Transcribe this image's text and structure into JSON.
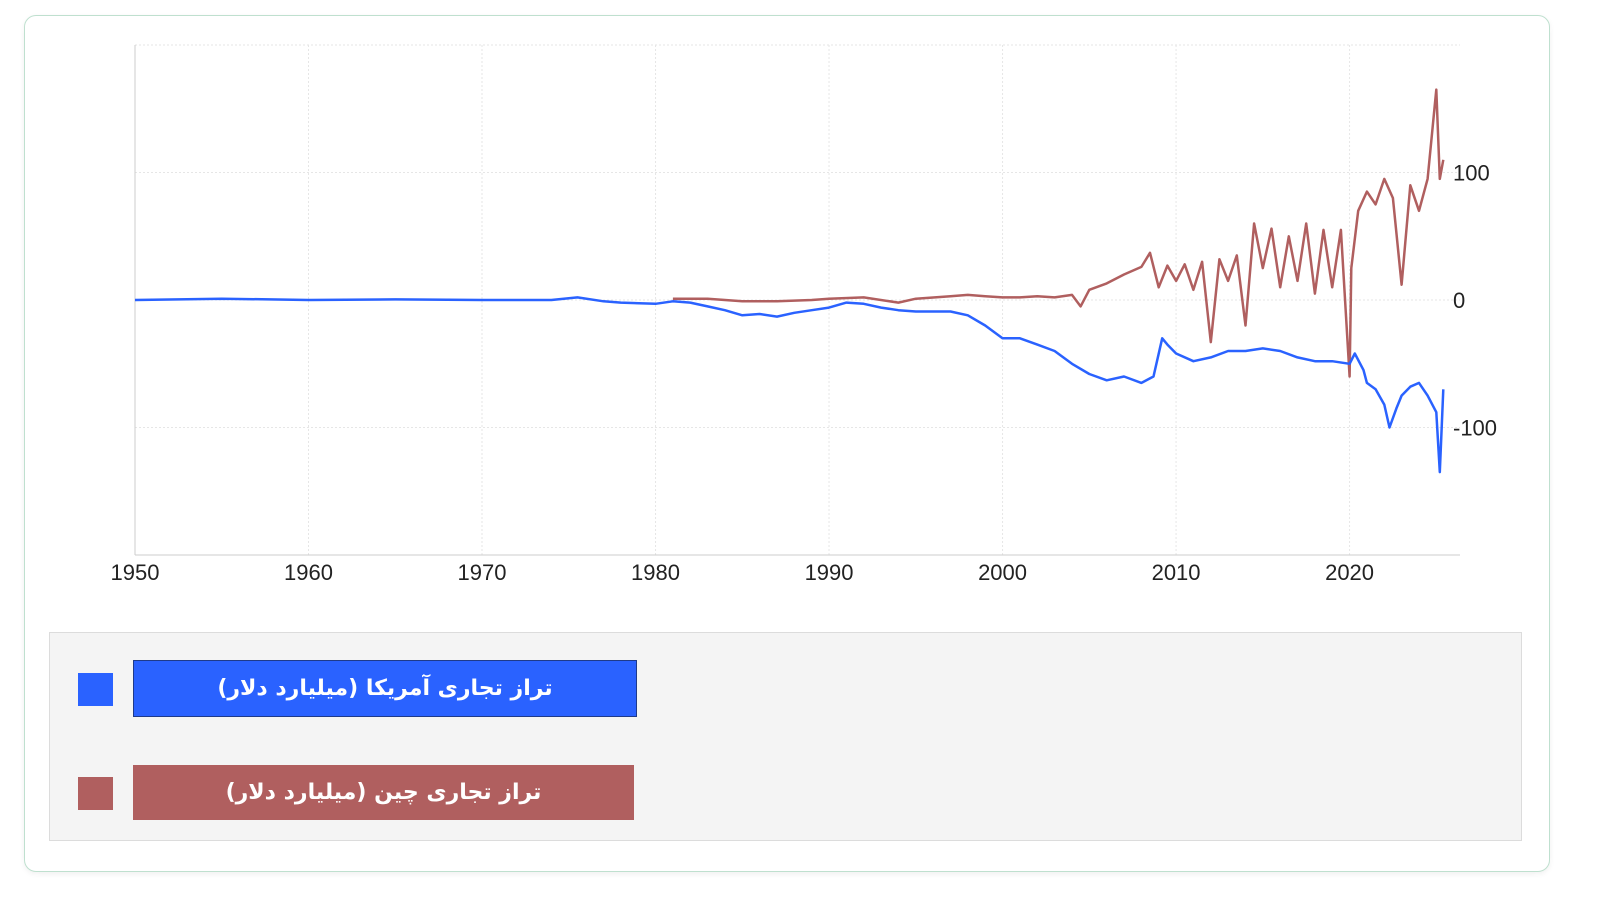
{
  "colors": {
    "us": "#2a62ff",
    "china": "#b05f5f",
    "grid": "#e6e6e6",
    "axis": "#cccccc"
  },
  "legend": [
    {
      "label": "تراز تجاری آمریکا (میلیارد دلار)",
      "color": "#2a62ff"
    },
    {
      "label": "تراز تجاری چین (میلیارد دلار)",
      "color": "#b05f5f"
    }
  ],
  "chart_data": {
    "type": "line",
    "xlim": [
      1950,
      2025.5
    ],
    "ylim": [
      -200,
      200
    ],
    "x_ticks": [
      1950,
      1960,
      1970,
      1980,
      1990,
      2000,
      2010,
      2020
    ],
    "x_tick_labels": [
      "1950",
      "1960",
      "1970",
      "1980",
      "1990",
      "2000",
      "2010",
      "2020"
    ],
    "y_ticks": [
      100,
      0,
      -100
    ],
    "y_tick_labels": [
      "100",
      "0",
      "-100"
    ],
    "y_axis_side": "right",
    "grid": true,
    "legend_position": "bottom",
    "series": [
      {
        "name": "تراز تجاری آمریکا (میلیارد دلار)",
        "x": [
          1950,
          1955,
          1960,
          1965,
          1970,
          1974,
          1975.5,
          1977,
          1978,
          1980,
          1981,
          1982,
          1983,
          1984,
          1985,
          1986,
          1987,
          1988,
          1989,
          1990,
          1991,
          1992,
          1993,
          1994,
          1995,
          1996,
          1997,
          1998,
          1999,
          2000,
          2001,
          2002,
          2003,
          2004,
          2005,
          2006,
          2007,
          2008,
          2008.7,
          2009.2,
          2009.5,
          2010,
          2011,
          2012,
          2013,
          2014,
          2015,
          2016,
          2017,
          2018,
          2019,
          2020,
          2020.3,
          2020.8,
          2021,
          2021.5,
          2022,
          2022.3,
          2022.7,
          2023,
          2023.5,
          2024,
          2024.5,
          2025,
          2025.2,
          2025.4
        ],
        "y": [
          0,
          1,
          0,
          0.5,
          0,
          0,
          2,
          -1,
          -2,
          -3,
          -1,
          -2,
          -5,
          -8,
          -12,
          -11,
          -13,
          -10,
          -8,
          -6,
          -2,
          -3,
          -6,
          -8,
          -9,
          -9,
          -9,
          -12,
          -20,
          -30,
          -30,
          -35,
          -40,
          -50,
          -58,
          -63,
          -60,
          -65,
          -60,
          -30,
          -35,
          -42,
          -48,
          -45,
          -40,
          -40,
          -38,
          -40,
          -45,
          -48,
          -48,
          -50,
          -42,
          -55,
          -65,
          -70,
          -82,
          -100,
          -85,
          -75,
          -68,
          -65,
          -75,
          -88,
          -135,
          -70
        ]
      },
      {
        "name": "تراز تجاری چین (میلیارد دلار)",
        "x": [
          1981,
          1983,
          1985,
          1987,
          1989,
          1990,
          1992,
          1994,
          1995,
          1997,
          1998,
          1999,
          2000,
          2001,
          2002,
          2003,
          2004,
          2004.5,
          2005,
          2006,
          2007,
          2008,
          2008.5,
          2009,
          2009.5,
          2010,
          2010.5,
          2011,
          2011.5,
          2012,
          2012.5,
          2013,
          2013.5,
          2014,
          2014.5,
          2015,
          2015.5,
          2016,
          2016.5,
          2017,
          2017.5,
          2018,
          2018.5,
          2019,
          2019.5,
          2020,
          2020.1,
          2020.5,
          2021,
          2021.5,
          2022,
          2022.5,
          2023,
          2023.5,
          2024,
          2024.5,
          2025,
          2025.2,
          2025.4
        ],
        "y": [
          1,
          1,
          -1,
          -1,
          0,
          1,
          2,
          -2,
          1,
          3,
          4,
          3,
          2,
          2,
          3,
          2,
          4,
          -5,
          8,
          13,
          20,
          26,
          37,
          10,
          27,
          15,
          28,
          8,
          30,
          -33,
          32,
          15,
          35,
          -20,
          60,
          25,
          56,
          10,
          50,
          15,
          60,
          5,
          55,
          10,
          55,
          -60,
          25,
          70,
          85,
          75,
          95,
          80,
          12,
          90,
          70,
          95,
          165,
          95,
          110
        ]
      }
    ]
  }
}
